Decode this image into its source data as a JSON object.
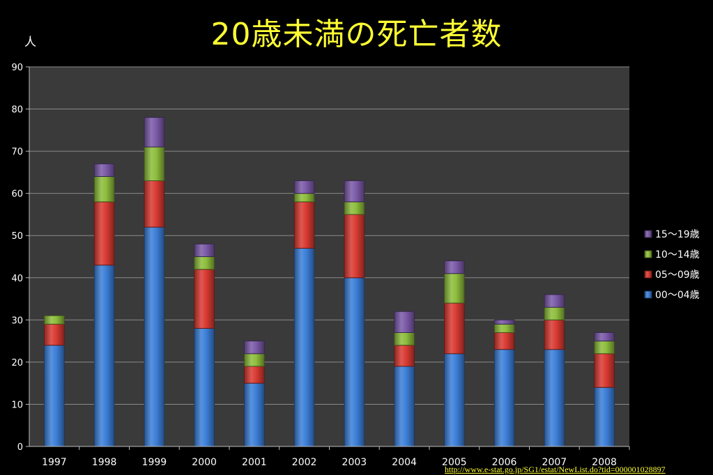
{
  "colors": {
    "background": "#000000",
    "plot_area": "#3a3a3a",
    "title": "#ffff33",
    "text": "#ffffff",
    "link": "#ffff33",
    "gridline": "#8a8a8a"
  },
  "page": {
    "title": "20歳未満の死亡者数",
    "unit_label": "人",
    "source_link": "http://www.e-stat.go.jp/SG1/estat/NewList.do?tid=000001028897"
  },
  "chart_data": {
    "type": "bar",
    "stacked": true,
    "title": "20歳未満の死亡者数",
    "ylabel": "人",
    "xlabel": "",
    "ylim": [
      0,
      90
    ],
    "yticks": [
      0,
      10,
      20,
      30,
      40,
      50,
      60,
      70,
      80,
      90
    ],
    "grid": true,
    "legend_position": "right",
    "categories": [
      "1997",
      "1998",
      "1999",
      "2000",
      "2001",
      "2002",
      "2003",
      "2004",
      "2005",
      "2006",
      "2007",
      "2008"
    ],
    "series": [
      {
        "name": "00〜04歳",
        "color": "#3c7fd8",
        "values": [
          24,
          43,
          52,
          28,
          15,
          47,
          40,
          19,
          22,
          23,
          23,
          14
        ]
      },
      {
        "name": "05〜09歳",
        "color": "#d93a32",
        "values": [
          5,
          15,
          11,
          14,
          4,
          11,
          15,
          5,
          12,
          4,
          7,
          8
        ]
      },
      {
        "name": "10〜14歳",
        "color": "#8dbd3c",
        "values": [
          2,
          6,
          8,
          3,
          3,
          2,
          3,
          3,
          7,
          2,
          3,
          3
        ]
      },
      {
        "name": "15〜19歳",
        "color": "#7b5aa8",
        "values": [
          0,
          3,
          7,
          3,
          3,
          3,
          5,
          5,
          3,
          1,
          3,
          2
        ]
      }
    ]
  }
}
